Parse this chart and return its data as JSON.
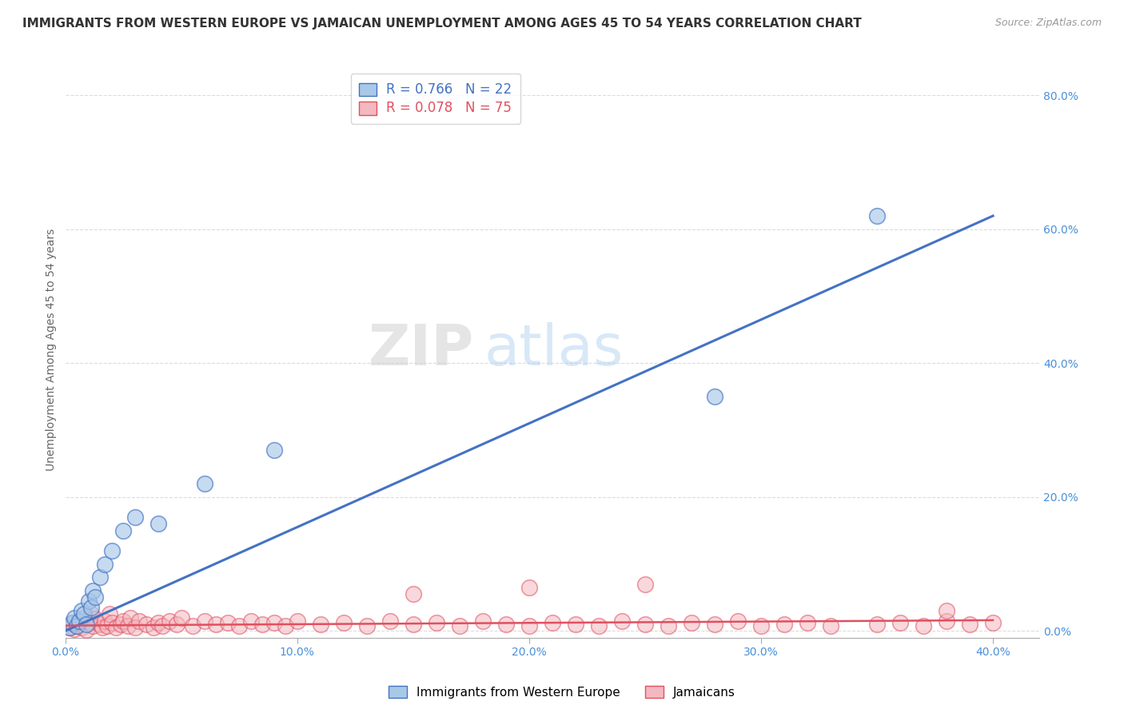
{
  "title": "IMMIGRANTS FROM WESTERN EUROPE VS JAMAICAN UNEMPLOYMENT AMONG AGES 45 TO 54 YEARS CORRELATION CHART",
  "source": "Source: ZipAtlas.com",
  "xlabel": "",
  "ylabel": "Unemployment Among Ages 45 to 54 years",
  "xlim": [
    0.0,
    0.42
  ],
  "ylim": [
    -0.01,
    0.85
  ],
  "xticks": [
    0.0,
    0.1,
    0.2,
    0.3,
    0.4
  ],
  "xtick_labels": [
    "0.0%",
    "10.0%",
    "20.0%",
    "30.0%",
    "40.0%"
  ],
  "ytick_labels_right": [
    "0.0%",
    "20.0%",
    "40.0%",
    "60.0%",
    "80.0%"
  ],
  "yticks_right": [
    0.0,
    0.2,
    0.4,
    0.6,
    0.8
  ],
  "blue_R": 0.766,
  "blue_N": 22,
  "pink_R": 0.078,
  "pink_N": 75,
  "blue_color": "#a8c8e8",
  "pink_color": "#f4b8c0",
  "blue_line_color": "#4472c4",
  "pink_line_color": "#e05060",
  "legend1_label": "Immigrants from Western Europe",
  "legend2_label": "Jamaicans",
  "watermark_zip": "ZIP",
  "watermark_atlas": "atlas",
  "background_color": "#ffffff",
  "grid_color": "#d8d8d8",
  "blue_scatter_x": [
    0.002,
    0.003,
    0.004,
    0.005,
    0.006,
    0.007,
    0.008,
    0.009,
    0.01,
    0.011,
    0.012,
    0.013,
    0.015,
    0.017,
    0.02,
    0.025,
    0.03,
    0.04,
    0.06,
    0.09,
    0.28,
    0.35
  ],
  "blue_scatter_y": [
    0.005,
    0.012,
    0.02,
    0.008,
    0.015,
    0.03,
    0.025,
    0.01,
    0.045,
    0.035,
    0.06,
    0.05,
    0.08,
    0.1,
    0.12,
    0.15,
    0.17,
    0.16,
    0.22,
    0.27,
    0.35,
    0.62
  ],
  "pink_scatter_x": [
    0.002,
    0.003,
    0.004,
    0.005,
    0.006,
    0.007,
    0.008,
    0.009,
    0.01,
    0.011,
    0.012,
    0.013,
    0.015,
    0.016,
    0.017,
    0.018,
    0.019,
    0.02,
    0.022,
    0.024,
    0.025,
    0.027,
    0.028,
    0.03,
    0.032,
    0.035,
    0.038,
    0.04,
    0.042,
    0.045,
    0.048,
    0.05,
    0.055,
    0.06,
    0.065,
    0.07,
    0.075,
    0.08,
    0.085,
    0.09,
    0.095,
    0.1,
    0.11,
    0.12,
    0.13,
    0.14,
    0.15,
    0.16,
    0.17,
    0.18,
    0.19,
    0.2,
    0.21,
    0.22,
    0.23,
    0.24,
    0.25,
    0.26,
    0.27,
    0.28,
    0.29,
    0.3,
    0.31,
    0.32,
    0.33,
    0.35,
    0.36,
    0.37,
    0.38,
    0.39,
    0.4,
    0.15,
    0.2,
    0.25,
    0.38
  ],
  "pink_scatter_y": [
    0.005,
    0.01,
    0.003,
    0.008,
    0.015,
    0.005,
    0.02,
    0.002,
    0.012,
    0.025,
    0.008,
    0.018,
    0.01,
    0.005,
    0.015,
    0.008,
    0.025,
    0.012,
    0.005,
    0.01,
    0.015,
    0.008,
    0.02,
    0.005,
    0.015,
    0.01,
    0.005,
    0.012,
    0.008,
    0.015,
    0.01,
    0.02,
    0.008,
    0.015,
    0.01,
    0.012,
    0.008,
    0.015,
    0.01,
    0.012,
    0.008,
    0.015,
    0.01,
    0.012,
    0.008,
    0.015,
    0.01,
    0.012,
    0.008,
    0.015,
    0.01,
    0.008,
    0.012,
    0.01,
    0.008,
    0.015,
    0.01,
    0.008,
    0.012,
    0.01,
    0.015,
    0.008,
    0.01,
    0.012,
    0.008,
    0.01,
    0.012,
    0.008,
    0.015,
    0.01,
    0.012,
    0.055,
    0.065,
    0.07,
    0.03
  ],
  "blue_line_x": [
    0.0,
    0.4
  ],
  "blue_line_y": [
    0.0,
    0.62
  ],
  "pink_line_x": [
    0.0,
    0.4
  ],
  "pink_line_y": [
    0.008,
    0.016
  ],
  "title_fontsize": 11,
  "source_fontsize": 9,
  "ylabel_fontsize": 10,
  "tick_fontsize": 10,
  "legend_fontsize": 10,
  "watermark_fontsize": 52
}
